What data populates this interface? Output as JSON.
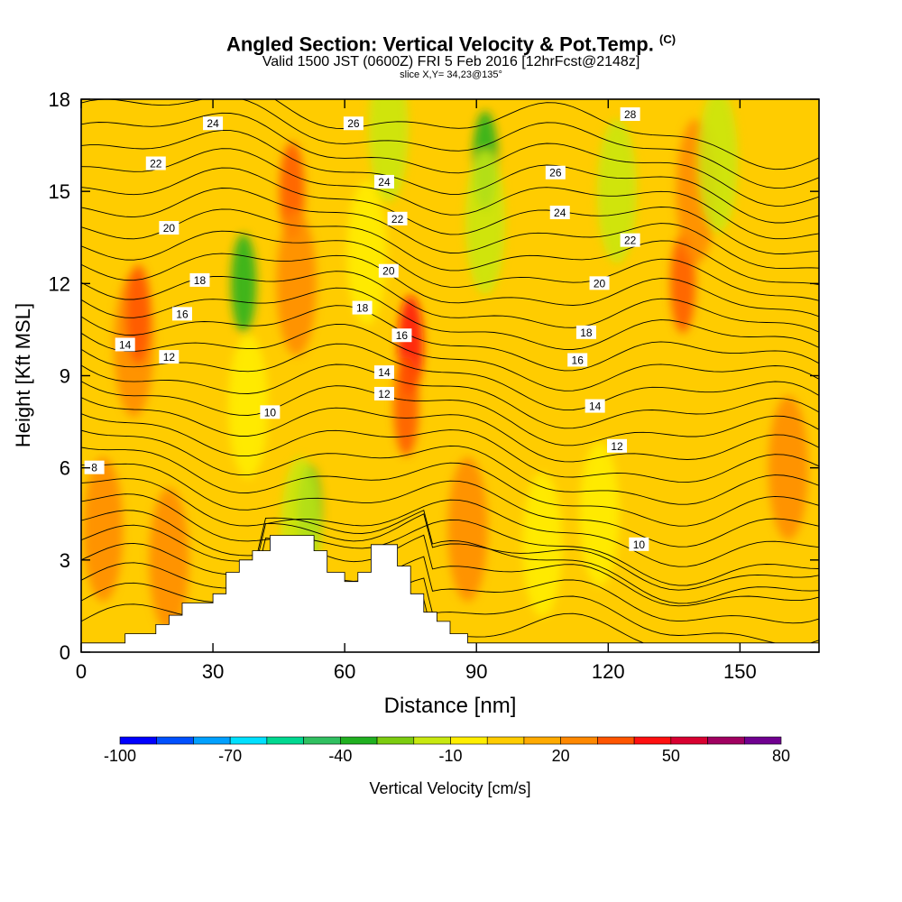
{
  "header": {
    "title": "Angled Section: Vertical Velocity & Pot.Temp.",
    "title_suffix": "(C)",
    "subtitle": "Valid 1500 JST (0600Z) FRI 5 Feb 2016 [12hrFcst@2148z]",
    "slice": "slice X,Y= 34,23@135°"
  },
  "chart_data": {
    "type": "heatmap",
    "xlabel": "Distance [nm]",
    "ylabel": "Height [Kft MSL]",
    "xlim": [
      0,
      168
    ],
    "ylim": [
      0,
      18
    ],
    "xticks": [
      "0",
      "30",
      "60",
      "90",
      "120",
      "150"
    ],
    "yticks": [
      "0",
      "3",
      "6",
      "9",
      "12",
      "15",
      "18"
    ],
    "colorbar": {
      "label": "Vertical Velocity [cm/s]",
      "tick_labels": [
        "-100",
        "-70",
        "-40",
        "-10",
        "20",
        "50",
        "80"
      ],
      "colors": [
        "#0000ff",
        "#0050ff",
        "#00a0ff",
        "#00e0ff",
        "#00d890",
        "#30c060",
        "#20b020",
        "#7ccc10",
        "#c8e810",
        "#ffee00",
        "#ffcc00",
        "#ffaa00",
        "#ff8800",
        "#ff5500",
        "#ff1010",
        "#d80030",
        "#a00060",
        "#700090"
      ],
      "levels": [
        -100,
        -90,
        -80,
        -70,
        -60,
        -50,
        -40,
        -30,
        -20,
        -10,
        0,
        10,
        20,
        30,
        40,
        50,
        60,
        70,
        80
      ]
    },
    "terrain_profile": {
      "x": [
        0,
        10,
        10,
        17,
        17,
        20,
        20,
        23,
        23,
        30,
        30,
        33,
        33,
        36,
        36,
        39,
        39,
        43,
        43,
        53,
        53,
        56,
        56,
        60,
        60,
        63,
        63,
        66,
        66,
        72,
        72,
        75,
        75,
        78,
        78,
        81,
        81,
        84,
        84,
        88,
        88,
        168
      ],
      "height": [
        0.3,
        0.3,
        0.6,
        0.6,
        0.9,
        0.9,
        1.2,
        1.2,
        1.6,
        1.6,
        1.9,
        1.9,
        2.6,
        2.6,
        3.0,
        3.0,
        3.3,
        3.3,
        3.8,
        3.8,
        3.3,
        3.3,
        2.6,
        2.6,
        2.3,
        2.3,
        2.6,
        2.6,
        3.5,
        3.5,
        2.8,
        2.8,
        1.9,
        1.9,
        1.3,
        1.3,
        1.0,
        1.0,
        0.6,
        0.6,
        0.3,
        0.3
      ]
    },
    "velocity_features": [
      {
        "x": 12,
        "y": 10,
        "value": 20
      },
      {
        "x": 13,
        "y": 11,
        "value": 30
      },
      {
        "x": 5,
        "y": 4,
        "value": 20
      },
      {
        "x": 20,
        "y": 3,
        "value": 20
      },
      {
        "x": 37,
        "y": 12,
        "value": -40
      },
      {
        "x": 38,
        "y": 8,
        "value": -10
      },
      {
        "x": 48,
        "y": 15,
        "value": 30
      },
      {
        "x": 49,
        "y": 12,
        "value": 20
      },
      {
        "x": 52,
        "y": 4.5,
        "value": -40
      },
      {
        "x": 50,
        "y": 4,
        "value": -20
      },
      {
        "x": 70,
        "y": 17,
        "value": -20
      },
      {
        "x": 65,
        "y": 13,
        "value": -10
      },
      {
        "x": 75,
        "y": 10,
        "value": 40
      },
      {
        "x": 74,
        "y": 8,
        "value": 30
      },
      {
        "x": 92,
        "y": 16,
        "value": -40
      },
      {
        "x": 92,
        "y": 14,
        "value": -20
      },
      {
        "x": 88,
        "y": 4,
        "value": 20
      },
      {
        "x": 105,
        "y": 3.5,
        "value": -10
      },
      {
        "x": 118,
        "y": 4.5,
        "value": -10
      },
      {
        "x": 122,
        "y": 15,
        "value": -20
      },
      {
        "x": 137,
        "y": 12,
        "value": 30
      },
      {
        "x": 140,
        "y": 15,
        "value": 20
      },
      {
        "x": 145,
        "y": 16,
        "value": -20
      },
      {
        "x": 161,
        "y": 6,
        "value": 20
      }
    ],
    "isentropes_C": [
      8,
      10,
      12,
      14,
      16,
      18,
      20,
      22,
      24,
      26,
      28
    ],
    "isentrope_labels": [
      {
        "text": "24",
        "x": 30,
        "y": 17.2
      },
      {
        "text": "26",
        "x": 62,
        "y": 17.2
      },
      {
        "text": "28",
        "x": 125,
        "y": 17.5
      },
      {
        "text": "22",
        "x": 17,
        "y": 15.9
      },
      {
        "text": "24",
        "x": 69,
        "y": 15.3
      },
      {
        "text": "26",
        "x": 108,
        "y": 15.6
      },
      {
        "text": "20",
        "x": 20,
        "y": 13.8
      },
      {
        "text": "22",
        "x": 72,
        "y": 14.1
      },
      {
        "text": "24",
        "x": 109,
        "y": 14.3
      },
      {
        "text": "22",
        "x": 125,
        "y": 13.4
      },
      {
        "text": "18",
        "x": 27,
        "y": 12.1
      },
      {
        "text": "20",
        "x": 70,
        "y": 12.4
      },
      {
        "text": "20",
        "x": 118,
        "y": 12.0
      },
      {
        "text": "16",
        "x": 23,
        "y": 11.0
      },
      {
        "text": "18",
        "x": 64,
        "y": 11.2
      },
      {
        "text": "14",
        "x": 10,
        "y": 10.0
      },
      {
        "text": "16",
        "x": 73,
        "y": 10.3
      },
      {
        "text": "18",
        "x": 115,
        "y": 10.4
      },
      {
        "text": "12",
        "x": 20,
        "y": 9.6
      },
      {
        "text": "14",
        "x": 69,
        "y": 9.1
      },
      {
        "text": "16",
        "x": 113,
        "y": 9.5
      },
      {
        "text": "12",
        "x": 69,
        "y": 8.4
      },
      {
        "text": "14",
        "x": 117,
        "y": 8.0
      },
      {
        "text": "10",
        "x": 43,
        "y": 7.8
      },
      {
        "text": "12",
        "x": 122,
        "y": 6.7
      },
      {
        "text": "8",
        "x": 3,
        "y": 6.0
      },
      {
        "text": "10",
        "x": 127,
        "y": 3.5
      }
    ]
  }
}
